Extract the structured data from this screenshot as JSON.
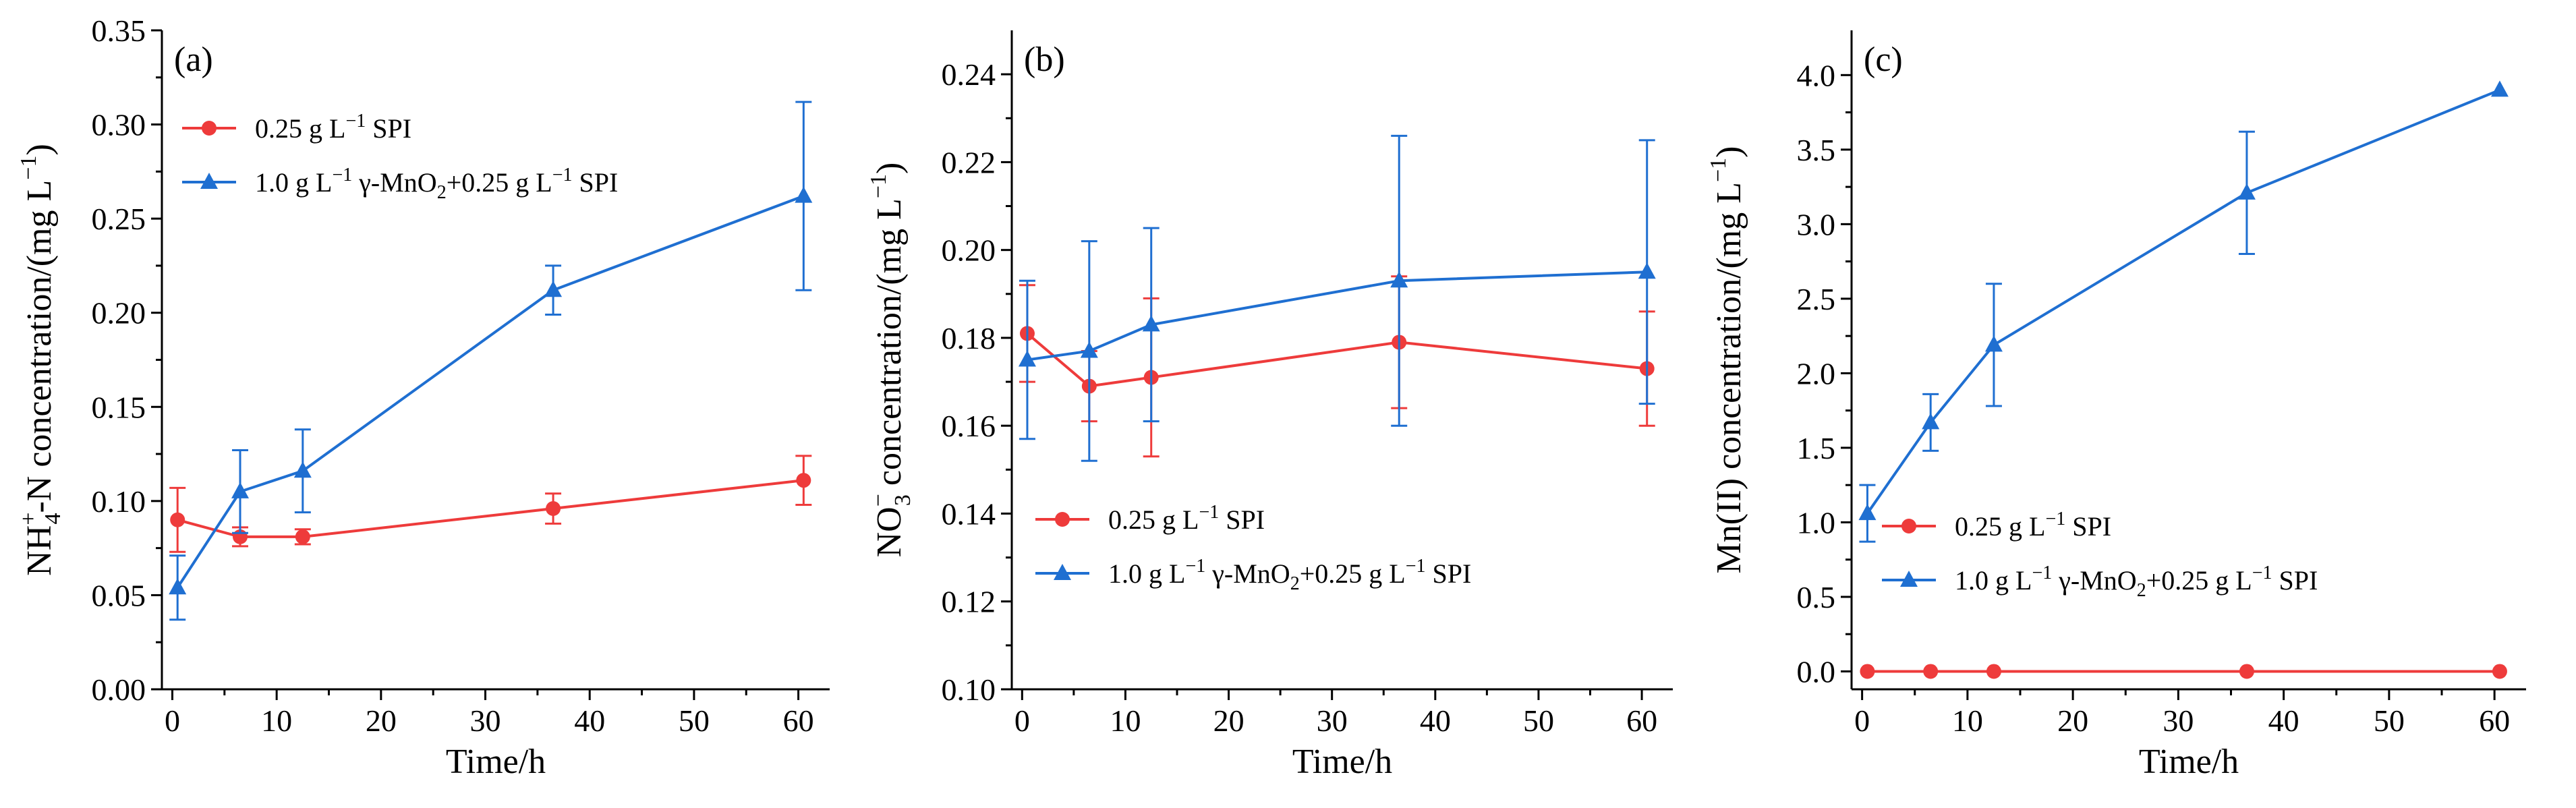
{
  "figure": {
    "colors": {
      "red": "#ee3b3b",
      "blue": "#1f6fd1",
      "axis": "#000000"
    }
  },
  "chart_data": [
    {
      "type": "line",
      "panel_label": "(a)",
      "xlabel": "Time/h",
      "ylabel": "NH4+-N concentration/(mg L−1)",
      "ylabel_parts": {
        "pre": "NH",
        "sub": "4",
        "sup": "+",
        "post": "-N concentration/(mg L",
        "unit_sup": "−1",
        "close": ")"
      },
      "xlim": [
        -1,
        63
      ],
      "ylim": [
        0.0,
        0.35
      ],
      "xticks": [
        0,
        10,
        20,
        30,
        40,
        50,
        60
      ],
      "xtick_labels": [
        "0",
        "10",
        "20",
        "30",
        "40",
        "50",
        "60"
      ],
      "yticks": [
        0.0,
        0.05,
        0.1,
        0.15,
        0.2,
        0.25,
        0.3,
        0.35
      ],
      "ytick_labels": [
        "0.00",
        "0.05",
        "0.10",
        "0.15",
        "0.20",
        "0.25",
        "0.30",
        "0.35"
      ],
      "legend_position": "upper-left",
      "series": [
        {
          "name": "0.25 g L−1 SPI",
          "legend_parts": [
            "0.25 g L",
            "−1",
            " SPI"
          ],
          "marker": "circle",
          "color": "#ee3b3b",
          "x": [
            0.5,
            6.5,
            12.5,
            36.5,
            60.5
          ],
          "y": [
            0.09,
            0.081,
            0.081,
            0.096,
            0.111
          ],
          "err": [
            0.017,
            0.005,
            0.004,
            0.008,
            0.013
          ]
        },
        {
          "name": "1.0 g L−1 γ-MnO2+0.25 g L−1 SPI",
          "legend_parts": [
            "1.0 g L",
            "−1",
            " γ-MnO",
            "2",
            "+0.25 g L",
            "−1",
            " SPI"
          ],
          "marker": "triangle",
          "color": "#1f6fd1",
          "x": [
            0.5,
            6.5,
            12.5,
            36.5,
            60.5
          ],
          "y": [
            0.054,
            0.105,
            0.116,
            0.212,
            0.262
          ],
          "err": [
            0.017,
            0.022,
            0.022,
            0.013,
            0.05
          ]
        }
      ]
    },
    {
      "type": "line",
      "panel_label": "(b)",
      "xlabel": "Time/h",
      "ylabel": "NO3− concentration/(mg L−1)",
      "ylabel_parts": {
        "pre": "NO",
        "sub": "3",
        "sup": "−",
        "post": " concentration/(mg L",
        "unit_sup": "−1",
        "close": ")"
      },
      "xlim": [
        -1,
        63
      ],
      "ylim": [
        0.1,
        0.25
      ],
      "xticks": [
        0,
        10,
        20,
        30,
        40,
        50,
        60
      ],
      "xtick_labels": [
        "0",
        "10",
        "20",
        "30",
        "40",
        "50",
        "60"
      ],
      "yticks": [
        0.1,
        0.12,
        0.14,
        0.16,
        0.18,
        0.2,
        0.22,
        0.24
      ],
      "ytick_labels": [
        "0.10",
        "0.12",
        "0.14",
        "0.16",
        "0.18",
        "0.20",
        "0.22",
        "0.24"
      ],
      "legend_position": "lower-left",
      "series": [
        {
          "name": "0.25 g L−1 SPI",
          "legend_parts": [
            "0.25 g L",
            "−1",
            " SPI"
          ],
          "marker": "circle",
          "color": "#ee3b3b",
          "x": [
            0.5,
            6.5,
            12.5,
            36.5,
            60.5
          ],
          "y": [
            0.181,
            0.169,
            0.171,
            0.179,
            0.173
          ],
          "err": [
            0.011,
            0.008,
            0.018,
            0.015,
            0.013
          ]
        },
        {
          "name": "1.0 g L−1 γ-MnO2+0.25 g L−1 SPI",
          "legend_parts": [
            "1.0 g L",
            "−1",
            " γ-MnO",
            "2",
            "+0.25 g L",
            "−1",
            " SPI"
          ],
          "marker": "triangle",
          "color": "#1f6fd1",
          "x": [
            0.5,
            6.5,
            12.5,
            36.5,
            60.5
          ],
          "y": [
            0.175,
            0.177,
            0.183,
            0.193,
            0.195
          ],
          "err": [
            0.018,
            0.025,
            0.022,
            0.033,
            0.03
          ]
        }
      ]
    },
    {
      "type": "line",
      "panel_label": "(c)",
      "xlabel": "Time/h",
      "ylabel": "Mn(II) concentration/(mg L−1)",
      "ylabel_parts": {
        "pre": "Mn(II) concentration/(mg L",
        "sub": "",
        "sup": "",
        "post": "",
        "unit_sup": "−1",
        "close": ")"
      },
      "xlim": [
        -1,
        63
      ],
      "ylim": [
        -0.12,
        4.3
      ],
      "xticks": [
        0,
        10,
        20,
        30,
        40,
        50,
        60
      ],
      "xtick_labels": [
        "0",
        "10",
        "20",
        "30",
        "40",
        "50",
        "60"
      ],
      "yticks": [
        0.0,
        0.5,
        1.0,
        1.5,
        2.0,
        2.5,
        3.0,
        3.5,
        4.0
      ],
      "ytick_labels": [
        "0.0",
        "0.5",
        "1.0",
        "1.5",
        "2.0",
        "2.5",
        "3.0",
        "3.5",
        "4.0"
      ],
      "legend_position": "lower-left",
      "series": [
        {
          "name": "0.25 g L−1 SPI",
          "legend_parts": [
            "0.25 g L",
            "−1",
            " SPI"
          ],
          "marker": "circle",
          "color": "#ee3b3b",
          "x": [
            0.5,
            6.5,
            12.5,
            36.5,
            60.5
          ],
          "y": [
            0.0,
            0.0,
            0.0,
            0.0,
            0.0
          ],
          "err": [
            0,
            0,
            0,
            0,
            0
          ]
        },
        {
          "name": "1.0 g L−1 γ-MnO2+0.25 g L−1 SPI",
          "legend_parts": [
            "1.0 g L",
            "−1",
            " γ-MnO",
            "2",
            "+0.25 g L",
            "−1",
            " SPI"
          ],
          "marker": "triangle",
          "color": "#1f6fd1",
          "x": [
            0.5,
            6.5,
            12.5,
            36.5,
            60.5
          ],
          "y": [
            1.06,
            1.67,
            2.19,
            3.21,
            3.9
          ],
          "err": [
            0.19,
            0.19,
            0.41,
            0.41,
            0.0
          ]
        }
      ]
    }
  ]
}
